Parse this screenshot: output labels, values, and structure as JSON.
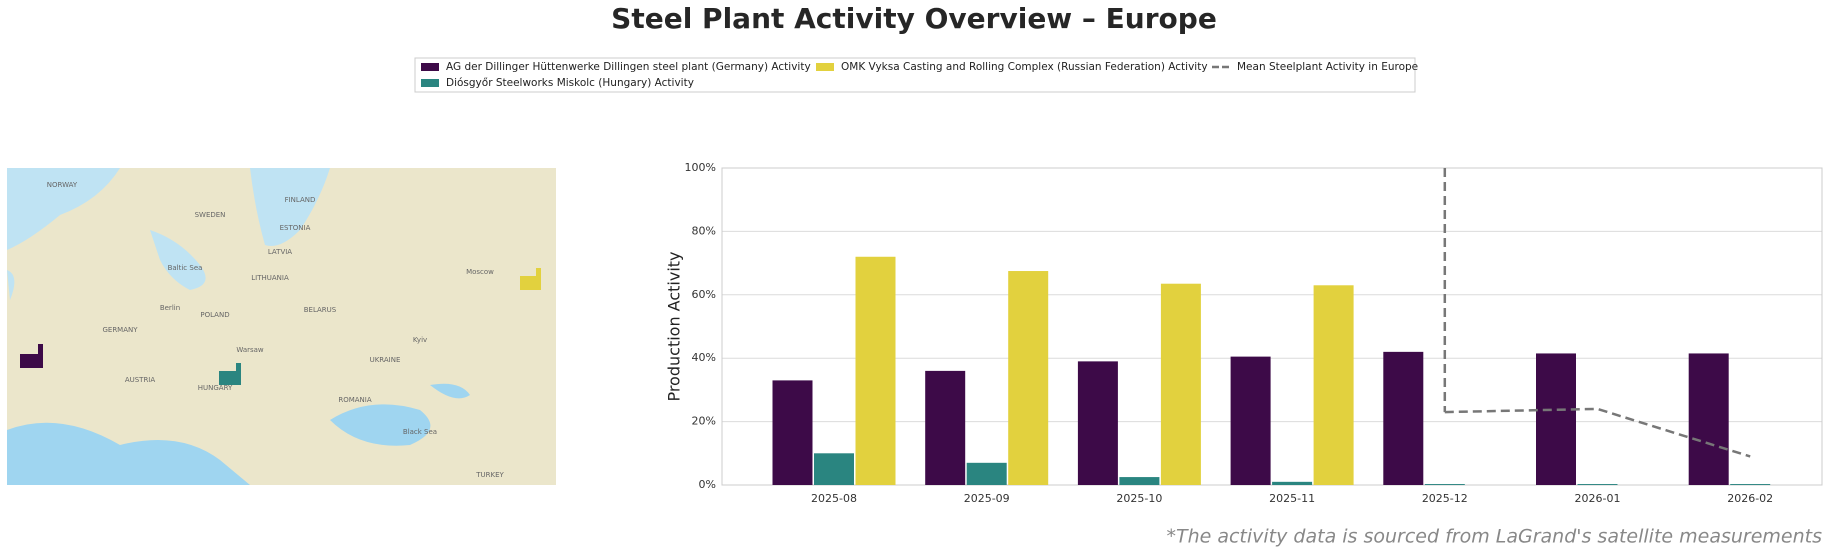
{
  "title": "Steel Plant Activity Overview – Europe",
  "footnote": "*The activity data is sourced from LaGrand's satellite measurements",
  "map": {
    "labels": [
      "NORWAY",
      "SWEDEN",
      "FINLAND",
      "ESTONIA",
      "LATVIA",
      "LITHUANIA",
      "BELARUS",
      "POLAND",
      "GERMANY",
      "UKRAINE",
      "ROMANIA",
      "HUNGARY",
      "AUSTRIA",
      "TURKEY",
      "Moscow",
      "Warsaw",
      "Berlin",
      "Kyiv",
      "Black Sea",
      "Baltic Sea"
    ]
  },
  "chart_data": {
    "type": "bar",
    "ylabel": "Production Activity",
    "categories": [
      "2025-08",
      "2025-09",
      "2025-10",
      "2025-11",
      "2025-12",
      "2026-01",
      "2026-02"
    ],
    "series": [
      {
        "name": "AG der Dillinger Hüttenwerke Dillingen steel plant (Germany) Activity",
        "color": "#3d0a48",
        "values": [
          33,
          36,
          39,
          40.5,
          42,
          41.5,
          41.5
        ]
      },
      {
        "name": "Diósgyőr Steelworks Miskolc (Hungary) Activity",
        "color": "#2a8580",
        "values": [
          10,
          7,
          2.5,
          1,
          0.3,
          0.3,
          0.3
        ]
      },
      {
        "name": "OMK Vyksa Casting and Rolling Complex (Russian Federation) Activity",
        "color": "#e2d13e",
        "values": [
          72,
          67.5,
          63.5,
          63,
          null,
          null,
          null
        ]
      },
      {
        "name": "Mean Steelplant Activity in Europe",
        "color": "#777777",
        "type": "line",
        "dashed": true,
        "values": [
          null,
          null,
          null,
          null,
          23,
          24,
          9
        ]
      }
    ],
    "ylim": [
      0,
      100
    ],
    "yticks": [
      {
        "value": 0,
        "label": "0%"
      },
      {
        "value": 20,
        "label": "20%"
      },
      {
        "value": 40,
        "label": "40%"
      },
      {
        "value": 60,
        "label": "60%"
      },
      {
        "value": 80,
        "label": "80%"
      },
      {
        "value": 100,
        "label": "100%"
      }
    ],
    "grid": true
  }
}
